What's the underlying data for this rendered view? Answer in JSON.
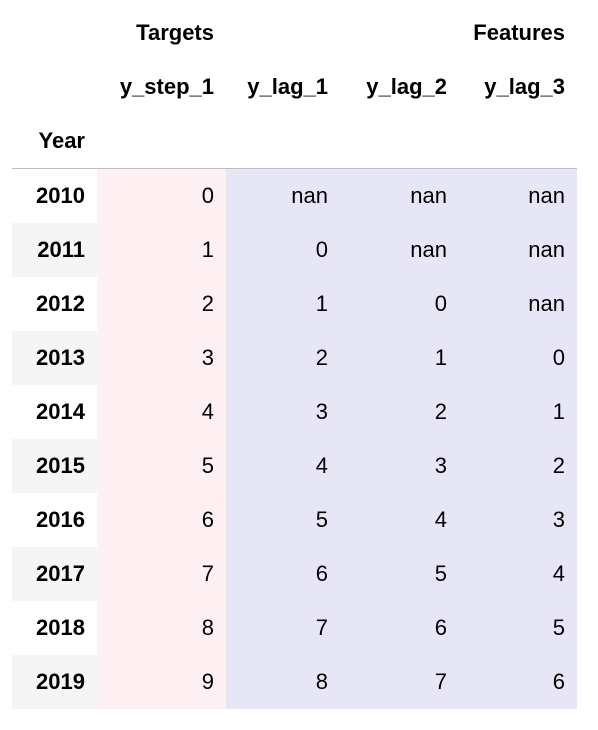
{
  "header": {
    "group_targets": "Targets",
    "group_features": "Features",
    "columns": [
      "y_step_1",
      "y_lag_1",
      "y_lag_2",
      "y_lag_3"
    ],
    "index_name": "Year"
  },
  "rows": [
    {
      "index": "2010",
      "y_step_1": "0",
      "y_lag_1": "nan",
      "y_lag_2": "nan",
      "y_lag_3": "nan"
    },
    {
      "index": "2011",
      "y_step_1": "1",
      "y_lag_1": "0",
      "y_lag_2": "nan",
      "y_lag_3": "nan"
    },
    {
      "index": "2012",
      "y_step_1": "2",
      "y_lag_1": "1",
      "y_lag_2": "0",
      "y_lag_3": "nan"
    },
    {
      "index": "2013",
      "y_step_1": "3",
      "y_lag_1": "2",
      "y_lag_2": "1",
      "y_lag_3": "0"
    },
    {
      "index": "2014",
      "y_step_1": "4",
      "y_lag_1": "3",
      "y_lag_2": "2",
      "y_lag_3": "1"
    },
    {
      "index": "2015",
      "y_step_1": "5",
      "y_lag_1": "4",
      "y_lag_2": "3",
      "y_lag_3": "2"
    },
    {
      "index": "2016",
      "y_step_1": "6",
      "y_lag_1": "5",
      "y_lag_2": "4",
      "y_lag_3": "3"
    },
    {
      "index": "2017",
      "y_step_1": "7",
      "y_lag_1": "6",
      "y_lag_2": "5",
      "y_lag_3": "4"
    },
    {
      "index": "2018",
      "y_step_1": "8",
      "y_lag_1": "7",
      "y_lag_2": "6",
      "y_lag_3": "5"
    },
    {
      "index": "2019",
      "y_step_1": "9",
      "y_lag_1": "8",
      "y_lag_2": "7",
      "y_lag_3": "6"
    }
  ],
  "colors": {
    "targets_bg": "#fff0f3",
    "features_bg": "#e6e6f7",
    "index_alt_bg": "#f5f5f5",
    "header_rule": "#bdbdbd"
  }
}
